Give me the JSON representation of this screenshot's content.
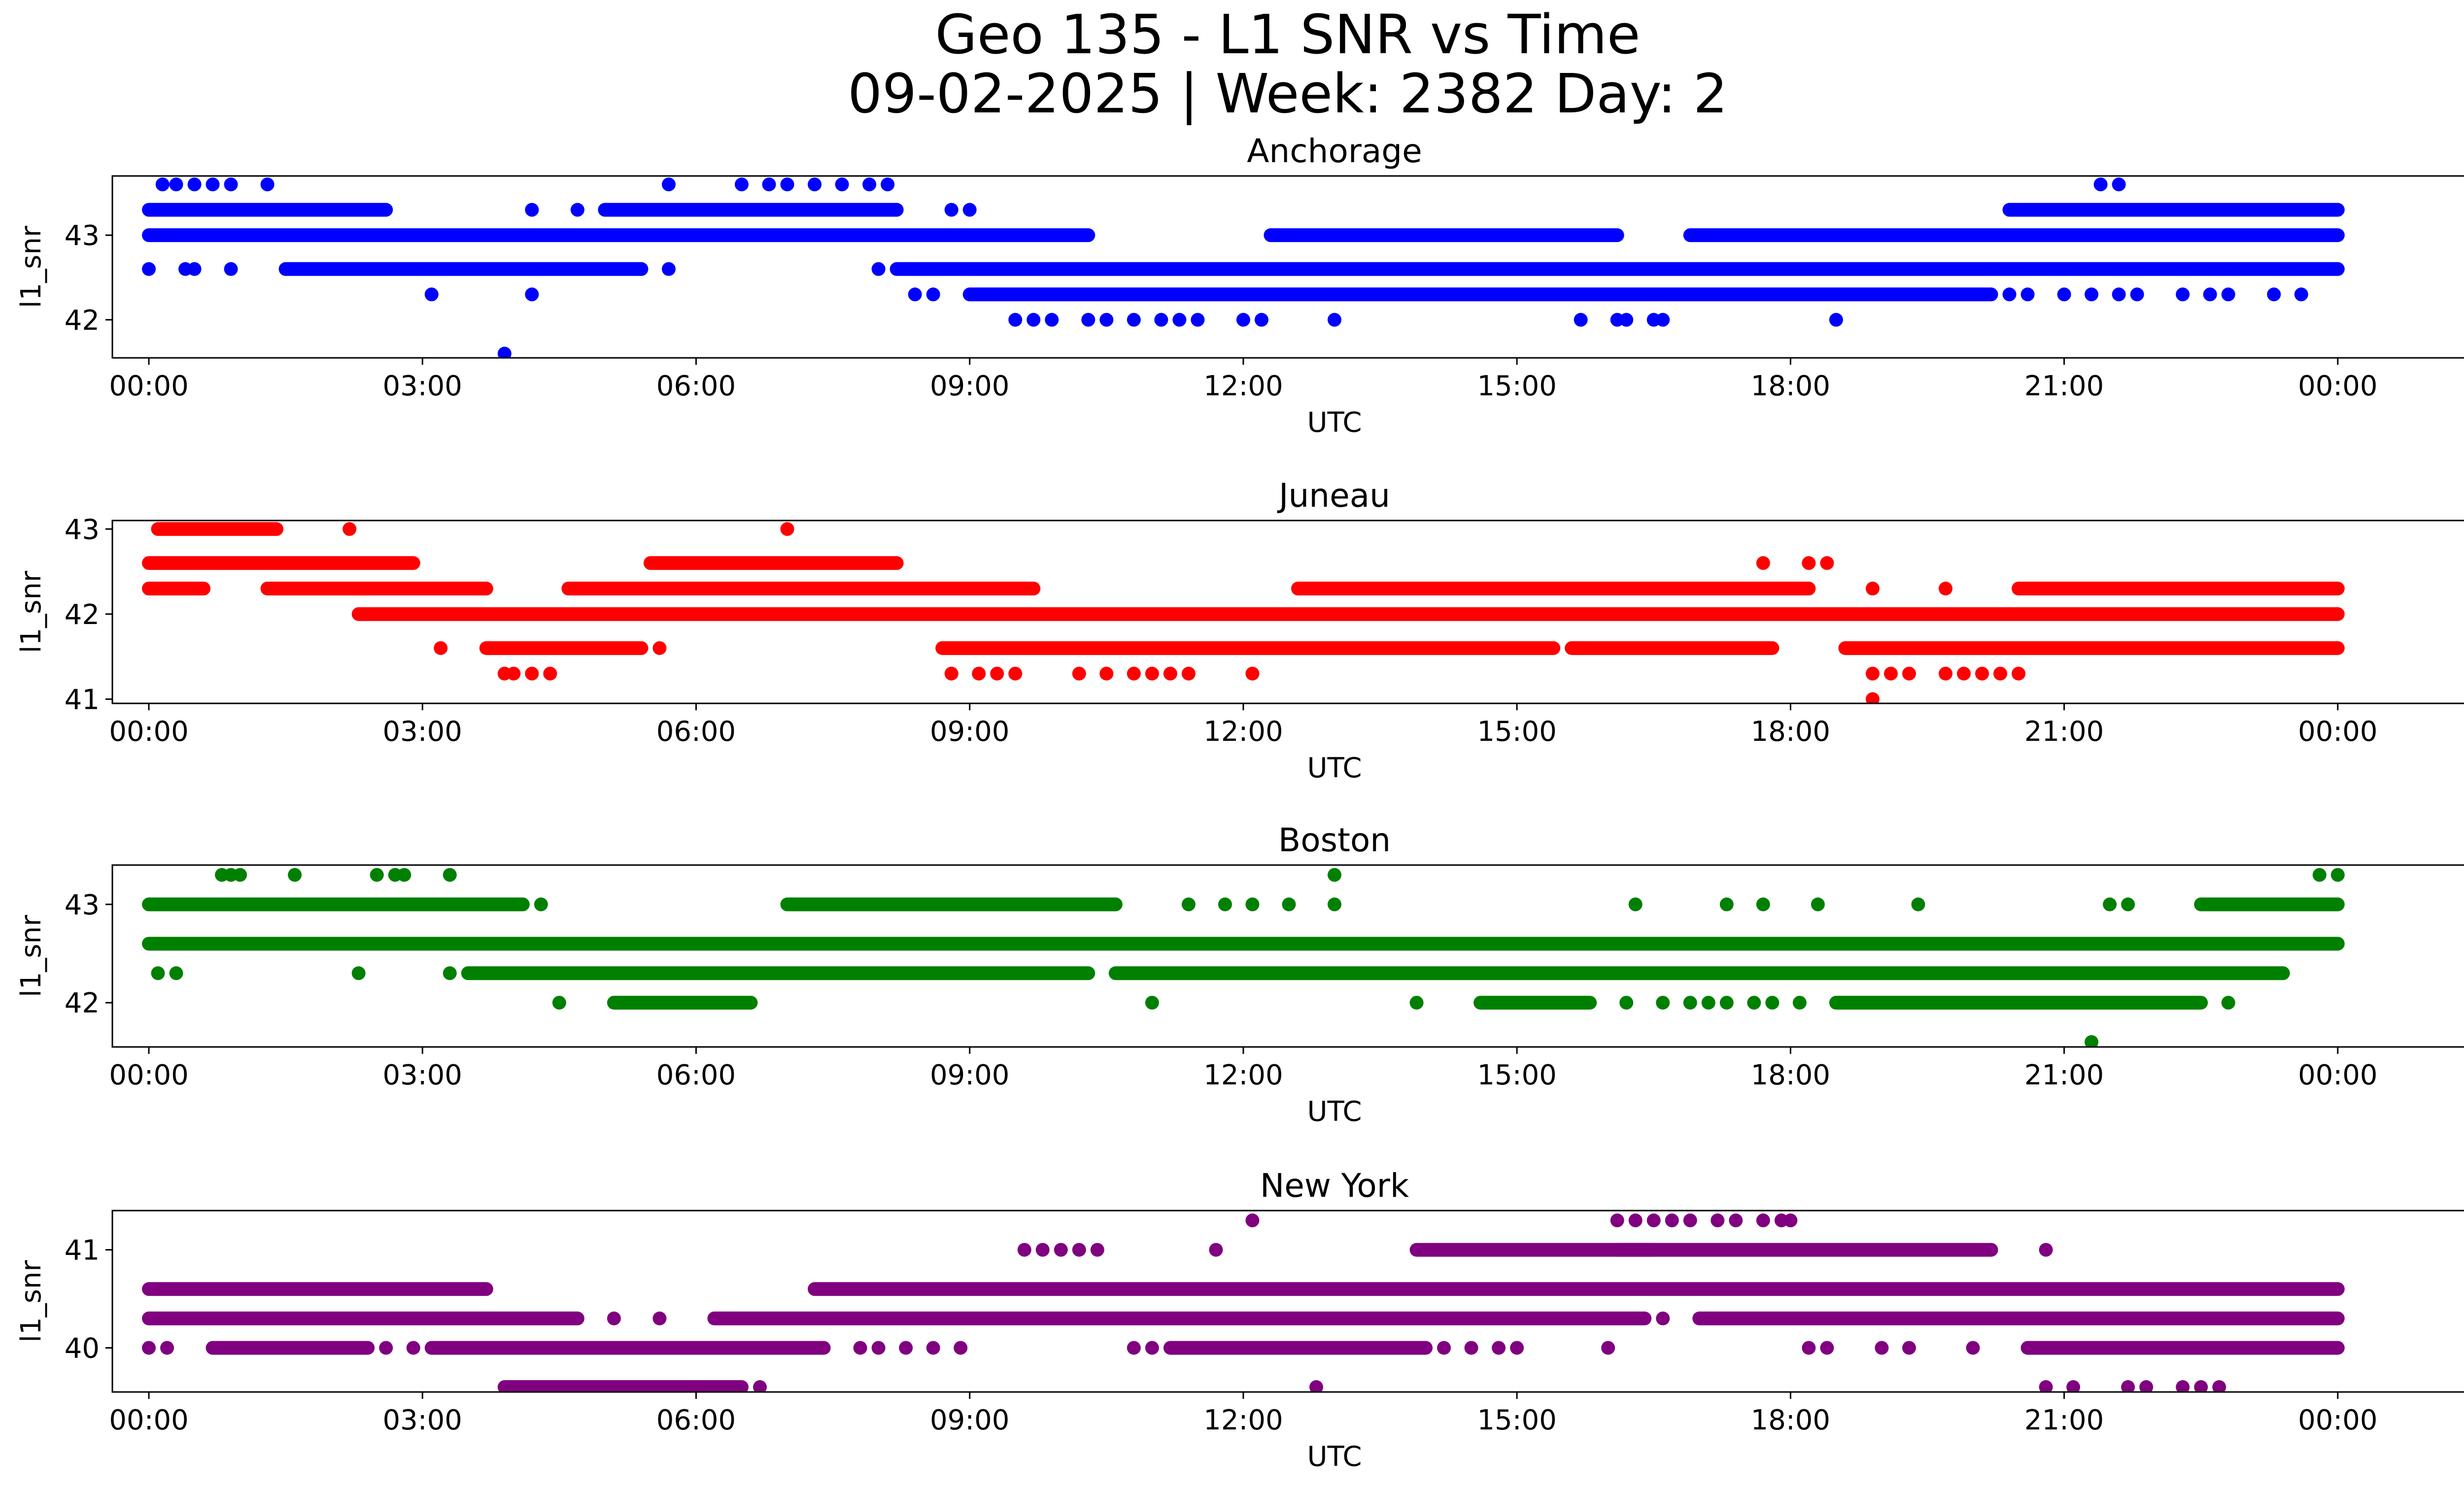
{
  "figure": {
    "title_line1": "Geo 135 - L1 SNR vs Time",
    "title_line2": "09-02-2025 | Week: 2382 Day: 2"
  },
  "chart_data": [
    {
      "type": "scatter",
      "title": "Anchorage",
      "xlabel": "UTC",
      "ylabel": "l1_snr",
      "color": "#0000ff",
      "xlim": [
        -0.4,
        26.4
      ],
      "ylim": [
        41.55,
        43.7
      ],
      "yticks": [
        42,
        43
      ],
      "xticks": [
        0,
        3,
        6,
        9,
        12,
        15,
        18,
        21,
        24
      ],
      "xticklabels": [
        "00:00",
        "03:00",
        "06:00",
        "09:00",
        "12:00",
        "15:00",
        "18:00",
        "21:00",
        "00:00"
      ],
      "bands": [
        {
          "y": 43.0,
          "segments": [
            [
              0.0,
              10.3
            ],
            [
              12.3,
              16.1
            ],
            [
              16.9,
              24.0
            ]
          ]
        },
        {
          "y": 42.6,
          "segments": [
            [
              8.2,
              24.0
            ]
          ]
        },
        {
          "y": 43.3,
          "segments": [
            [
              0.0,
              2.6
            ],
            [
              5.0,
              8.2
            ],
            [
              20.4,
              24.0
            ]
          ]
        },
        {
          "y": 42.6,
          "segments": [
            [
              1.5,
              5.4
            ]
          ]
        },
        {
          "y": 42.3,
          "segments": [
            [
              9.0,
              20.2
            ]
          ]
        }
      ],
      "points": [
        {
          "x": 0.15,
          "y": 43.6
        },
        {
          "x": 0.3,
          "y": 43.6
        },
        {
          "x": 0.5,
          "y": 43.6
        },
        {
          "x": 0.7,
          "y": 43.6
        },
        {
          "x": 0.9,
          "y": 43.6
        },
        {
          "x": 1.3,
          "y": 43.6
        },
        {
          "x": 5.7,
          "y": 43.6
        },
        {
          "x": 6.5,
          "y": 43.6
        },
        {
          "x": 6.8,
          "y": 43.6
        },
        {
          "x": 7.0,
          "y": 43.6
        },
        {
          "x": 7.3,
          "y": 43.6
        },
        {
          "x": 7.6,
          "y": 43.6
        },
        {
          "x": 7.9,
          "y": 43.6
        },
        {
          "x": 8.1,
          "y": 43.6
        },
        {
          "x": 21.4,
          "y": 43.6
        },
        {
          "x": 21.6,
          "y": 43.6
        },
        {
          "x": 4.2,
          "y": 43.3
        },
        {
          "x": 4.7,
          "y": 43.3
        },
        {
          "x": 8.8,
          "y": 43.3
        },
        {
          "x": 9.0,
          "y": 43.3
        },
        {
          "x": 0.0,
          "y": 42.6
        },
        {
          "x": 0.4,
          "y": 42.6
        },
        {
          "x": 0.5,
          "y": 42.6
        },
        {
          "x": 0.9,
          "y": 42.6
        },
        {
          "x": 5.7,
          "y": 42.6
        },
        {
          "x": 8.0,
          "y": 42.6
        },
        {
          "x": 3.1,
          "y": 42.3
        },
        {
          "x": 4.2,
          "y": 42.3
        },
        {
          "x": 8.4,
          "y": 42.3
        },
        {
          "x": 8.6,
          "y": 42.3
        },
        {
          "x": 20.4,
          "y": 42.3
        },
        {
          "x": 20.6,
          "y": 42.3
        },
        {
          "x": 21.0,
          "y": 42.3
        },
        {
          "x": 21.3,
          "y": 42.3
        },
        {
          "x": 21.6,
          "y": 42.3
        },
        {
          "x": 21.8,
          "y": 42.3
        },
        {
          "x": 22.3,
          "y": 42.3
        },
        {
          "x": 22.6,
          "y": 42.3
        },
        {
          "x": 22.8,
          "y": 42.3
        },
        {
          "x": 23.3,
          "y": 42.3
        },
        {
          "x": 23.6,
          "y": 42.3
        },
        {
          "x": 9.5,
          "y": 42.0
        },
        {
          "x": 9.7,
          "y": 42.0
        },
        {
          "x": 9.9,
          "y": 42.0
        },
        {
          "x": 10.3,
          "y": 42.0
        },
        {
          "x": 10.5,
          "y": 42.0
        },
        {
          "x": 10.8,
          "y": 42.0
        },
        {
          "x": 11.1,
          "y": 42.0
        },
        {
          "x": 11.3,
          "y": 42.0
        },
        {
          "x": 11.5,
          "y": 42.0
        },
        {
          "x": 12.0,
          "y": 42.0
        },
        {
          "x": 12.2,
          "y": 42.0
        },
        {
          "x": 13.0,
          "y": 42.0
        },
        {
          "x": 15.7,
          "y": 42.0
        },
        {
          "x": 16.1,
          "y": 42.0
        },
        {
          "x": 16.2,
          "y": 42.0
        },
        {
          "x": 16.5,
          "y": 42.0
        },
        {
          "x": 16.6,
          "y": 42.0
        },
        {
          "x": 18.5,
          "y": 42.0
        },
        {
          "x": 3.9,
          "y": 41.6
        }
      ]
    },
    {
      "type": "scatter",
      "title": "Juneau",
      "xlabel": "UTC",
      "ylabel": "l1_snr",
      "color": "#ff0000",
      "xlim": [
        -0.4,
        26.4
      ],
      "ylim": [
        40.95,
        43.1
      ],
      "yticks": [
        41,
        42,
        43
      ],
      "xticks": [
        0,
        3,
        6,
        9,
        12,
        15,
        18,
        21,
        24
      ],
      "xticklabels": [
        "00:00",
        "03:00",
        "06:00",
        "09:00",
        "12:00",
        "15:00",
        "18:00",
        "21:00",
        "00:00"
      ],
      "bands": [
        {
          "y": 42.6,
          "segments": [
            [
              0.0,
              2.9
            ]
          ]
        },
        {
          "y": 42.3,
          "segments": [
            [
              0.0,
              0.6
            ],
            [
              1.3,
              3.7
            ],
            [
              4.6,
              9.7
            ],
            [
              12.6,
              18.2
            ],
            [
              20.5,
              24.0
            ]
          ]
        },
        {
          "y": 42.0,
          "segments": [
            [
              2.3,
              24.0
            ]
          ]
        },
        {
          "y": 42.6,
          "segments": [
            [
              5.5,
              8.2
            ]
          ]
        },
        {
          "y": 41.6,
          "segments": [
            [
              3.7,
              5.4
            ],
            [
              8.7,
              15.4
            ],
            [
              15.6,
              17.8
            ],
            [
              18.6,
              24.0
            ]
          ]
        },
        {
          "y": 43.0,
          "segments": [
            [
              0.1,
              1.4
            ]
          ]
        }
      ],
      "points": [
        {
          "x": 2.2,
          "y": 43.0
        },
        {
          "x": 7.0,
          "y": 43.0
        },
        {
          "x": 17.7,
          "y": 42.6
        },
        {
          "x": 18.2,
          "y": 42.6
        },
        {
          "x": 18.4,
          "y": 42.6
        },
        {
          "x": 3.2,
          "y": 41.6
        },
        {
          "x": 5.6,
          "y": 41.6
        },
        {
          "x": 3.9,
          "y": 41.3
        },
        {
          "x": 4.0,
          "y": 41.3
        },
        {
          "x": 4.2,
          "y": 41.3
        },
        {
          "x": 4.4,
          "y": 41.3
        },
        {
          "x": 8.8,
          "y": 41.3
        },
        {
          "x": 9.1,
          "y": 41.3
        },
        {
          "x": 9.3,
          "y": 41.3
        },
        {
          "x": 9.5,
          "y": 41.3
        },
        {
          "x": 10.2,
          "y": 41.3
        },
        {
          "x": 10.5,
          "y": 41.3
        },
        {
          "x": 10.8,
          "y": 41.3
        },
        {
          "x": 11.0,
          "y": 41.3
        },
        {
          "x": 11.2,
          "y": 41.3
        },
        {
          "x": 11.4,
          "y": 41.3
        },
        {
          "x": 12.1,
          "y": 41.3
        },
        {
          "x": 18.9,
          "y": 41.3
        },
        {
          "x": 19.1,
          "y": 41.3
        },
        {
          "x": 19.3,
          "y": 41.3
        },
        {
          "x": 19.7,
          "y": 41.3
        },
        {
          "x": 19.9,
          "y": 41.3
        },
        {
          "x": 20.1,
          "y": 41.3
        },
        {
          "x": 20.3,
          "y": 41.3
        },
        {
          "x": 20.5,
          "y": 41.3
        },
        {
          "x": 18.9,
          "y": 41.0
        },
        {
          "x": 19.7,
          "y": 42.3
        },
        {
          "x": 18.9,
          "y": 42.3
        }
      ]
    },
    {
      "type": "scatter",
      "title": "Boston",
      "xlabel": "UTC",
      "ylabel": "l1_snr",
      "color": "#008000",
      "xlim": [
        -0.4,
        26.4
      ],
      "ylim": [
        41.55,
        43.4
      ],
      "yticks": [
        42,
        43
      ],
      "xticks": [
        0,
        3,
        6,
        9,
        12,
        15,
        18,
        21,
        24
      ],
      "xticklabels": [
        "00:00",
        "03:00",
        "06:00",
        "09:00",
        "12:00",
        "15:00",
        "18:00",
        "21:00",
        "00:00"
      ],
      "bands": [
        {
          "y": 42.6,
          "segments": [
            [
              0.0,
              24.0
            ]
          ]
        },
        {
          "y": 43.0,
          "segments": [
            [
              0.0,
              4.1
            ],
            [
              7.0,
              10.6
            ],
            [
              22.5,
              24.0
            ]
          ]
        },
        {
          "y": 42.3,
          "segments": [
            [
              3.5,
              10.3
            ],
            [
              10.6,
              23.4
            ]
          ]
        },
        {
          "y": 42.0,
          "segments": [
            [
              5.1,
              6.6
            ],
            [
              14.6,
              15.8
            ],
            [
              18.5,
              22.5
            ]
          ]
        }
      ],
      "points": [
        {
          "x": 0.8,
          "y": 43.3
        },
        {
          "x": 0.9,
          "y": 43.3
        },
        {
          "x": 1.0,
          "y": 43.3
        },
        {
          "x": 1.6,
          "y": 43.3
        },
        {
          "x": 2.5,
          "y": 43.3
        },
        {
          "x": 2.7,
          "y": 43.3
        },
        {
          "x": 2.8,
          "y": 43.3
        },
        {
          "x": 3.3,
          "y": 43.3
        },
        {
          "x": 13.0,
          "y": 43.3
        },
        {
          "x": 23.8,
          "y": 43.3
        },
        {
          "x": 24.0,
          "y": 43.3
        },
        {
          "x": 4.3,
          "y": 43.0
        },
        {
          "x": 11.4,
          "y": 43.0
        },
        {
          "x": 11.8,
          "y": 43.0
        },
        {
          "x": 12.1,
          "y": 43.0
        },
        {
          "x": 12.5,
          "y": 43.0
        },
        {
          "x": 13.0,
          "y": 43.0
        },
        {
          "x": 16.3,
          "y": 43.0
        },
        {
          "x": 17.3,
          "y": 43.0
        },
        {
          "x": 17.7,
          "y": 43.0
        },
        {
          "x": 18.3,
          "y": 43.0
        },
        {
          "x": 19.4,
          "y": 43.0
        },
        {
          "x": 21.5,
          "y": 43.0
        },
        {
          "x": 21.7,
          "y": 43.0
        },
        {
          "x": 0.1,
          "y": 42.3
        },
        {
          "x": 0.3,
          "y": 42.3
        },
        {
          "x": 2.3,
          "y": 42.3
        },
        {
          "x": 3.3,
          "y": 42.3
        },
        {
          "x": 4.5,
          "y": 42.0
        },
        {
          "x": 11.0,
          "y": 42.0
        },
        {
          "x": 13.9,
          "y": 42.0
        },
        {
          "x": 16.2,
          "y": 42.0
        },
        {
          "x": 16.6,
          "y": 42.0
        },
        {
          "x": 16.9,
          "y": 42.0
        },
        {
          "x": 17.1,
          "y": 42.0
        },
        {
          "x": 17.3,
          "y": 42.0
        },
        {
          "x": 17.6,
          "y": 42.0
        },
        {
          "x": 17.8,
          "y": 42.0
        },
        {
          "x": 18.1,
          "y": 42.0
        },
        {
          "x": 22.8,
          "y": 42.0
        },
        {
          "x": 21.3,
          "y": 41.6
        }
      ]
    },
    {
      "type": "scatter",
      "title": "New York",
      "xlabel": "UTC",
      "ylabel": "l1_snr",
      "color": "#800080",
      "xlim": [
        -0.4,
        26.4
      ],
      "ylim": [
        39.55,
        41.4
      ],
      "yticks": [
        40,
        41
      ],
      "xticks": [
        0,
        3,
        6,
        9,
        12,
        15,
        18,
        21,
        24
      ],
      "xticklabels": [
        "00:00",
        "03:00",
        "06:00",
        "09:00",
        "12:00",
        "15:00",
        "18:00",
        "21:00",
        "00:00"
      ],
      "bands": [
        {
          "y": 40.6,
          "segments": [
            [
              0.0,
              3.7
            ],
            [
              7.3,
              24.0
            ]
          ]
        },
        {
          "y": 40.3,
          "segments": [
            [
              0.0,
              4.7
            ],
            [
              6.2,
              16.4
            ],
            [
              17.0,
              24.0
            ]
          ]
        },
        {
          "y": 40.0,
          "segments": [
            [
              0.7,
              2.4
            ],
            [
              3.1,
              7.4
            ],
            [
              11.2,
              14.0
            ],
            [
              20.6,
              24.0
            ]
          ]
        },
        {
          "y": 41.0,
          "segments": [
            [
              13.9,
              16.5
            ],
            [
              16.1,
              20.2
            ]
          ]
        },
        {
          "y": 39.6,
          "segments": [
            [
              3.9,
              6.5
            ]
          ]
        }
      ],
      "points": [
        {
          "x": 0.0,
          "y": 40.0
        },
        {
          "x": 0.2,
          "y": 40.0
        },
        {
          "x": 2.6,
          "y": 40.0
        },
        {
          "x": 2.9,
          "y": 40.0
        },
        {
          "x": 7.8,
          "y": 40.0
        },
        {
          "x": 8.0,
          "y": 40.0
        },
        {
          "x": 8.3,
          "y": 40.0
        },
        {
          "x": 8.6,
          "y": 40.0
        },
        {
          "x": 8.9,
          "y": 40.0
        },
        {
          "x": 10.8,
          "y": 40.0
        },
        {
          "x": 11.0,
          "y": 40.0
        },
        {
          "x": 14.2,
          "y": 40.0
        },
        {
          "x": 14.5,
          "y": 40.0
        },
        {
          "x": 14.8,
          "y": 40.0
        },
        {
          "x": 15.0,
          "y": 40.0
        },
        {
          "x": 16.0,
          "y": 40.0
        },
        {
          "x": 18.2,
          "y": 40.0
        },
        {
          "x": 18.4,
          "y": 40.0
        },
        {
          "x": 19.0,
          "y": 40.0
        },
        {
          "x": 19.3,
          "y": 40.0
        },
        {
          "x": 20.0,
          "y": 40.0
        },
        {
          "x": 9.6,
          "y": 41.0
        },
        {
          "x": 9.8,
          "y": 41.0
        },
        {
          "x": 10.0,
          "y": 41.0
        },
        {
          "x": 10.2,
          "y": 41.0
        },
        {
          "x": 10.4,
          "y": 41.0
        },
        {
          "x": 11.7,
          "y": 41.0
        },
        {
          "x": 20.8,
          "y": 41.0
        },
        {
          "x": 12.1,
          "y": 41.3
        },
        {
          "x": 16.1,
          "y": 41.3
        },
        {
          "x": 16.3,
          "y": 41.3
        },
        {
          "x": 16.5,
          "y": 41.3
        },
        {
          "x": 16.7,
          "y": 41.3
        },
        {
          "x": 16.9,
          "y": 41.3
        },
        {
          "x": 17.2,
          "y": 41.3
        },
        {
          "x": 17.4,
          "y": 41.3
        },
        {
          "x": 17.7,
          "y": 41.3
        },
        {
          "x": 17.9,
          "y": 41.3
        },
        {
          "x": 18.0,
          "y": 41.3
        },
        {
          "x": 5.1,
          "y": 40.3
        },
        {
          "x": 5.6,
          "y": 40.3
        },
        {
          "x": 16.6,
          "y": 40.3
        },
        {
          "x": 12.8,
          "y": 39.6
        },
        {
          "x": 20.8,
          "y": 39.6
        },
        {
          "x": 21.1,
          "y": 39.6
        },
        {
          "x": 21.7,
          "y": 39.6
        },
        {
          "x": 21.9,
          "y": 39.6
        },
        {
          "x": 22.3,
          "y": 39.6
        },
        {
          "x": 22.5,
          "y": 39.6
        },
        {
          "x": 22.7,
          "y": 39.6
        },
        {
          "x": 6.7,
          "y": 39.6
        }
      ]
    }
  ]
}
